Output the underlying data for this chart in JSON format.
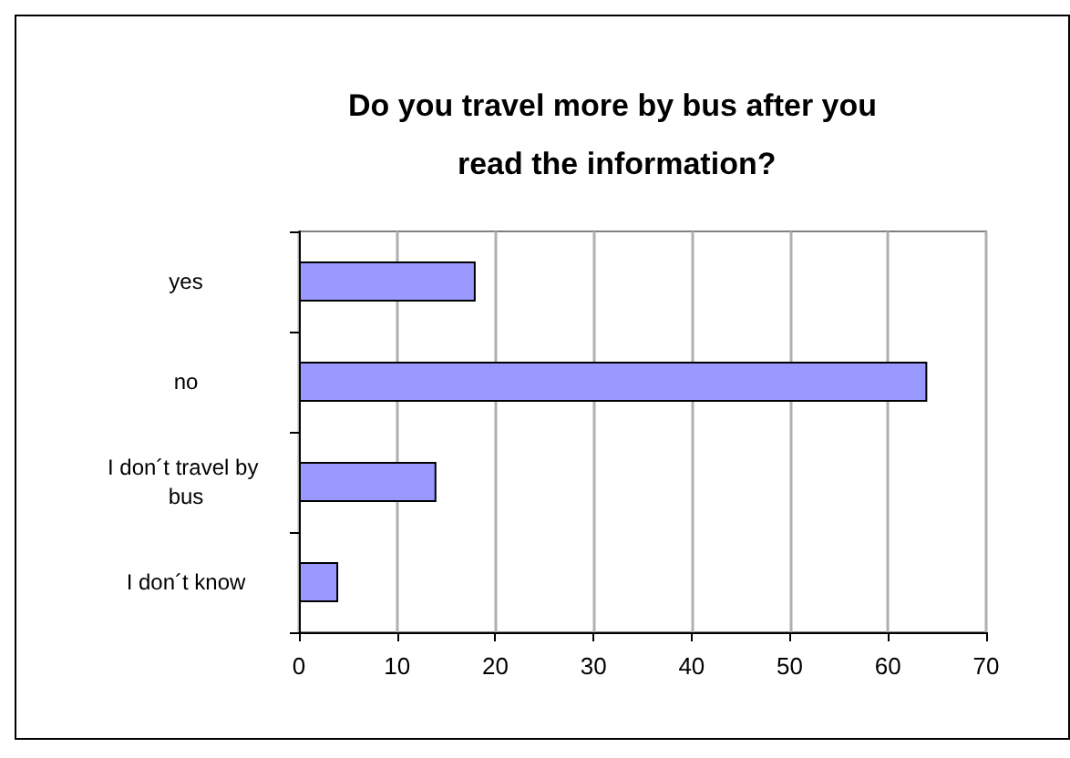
{
  "chart_data": {
    "type": "bar",
    "orientation": "horizontal",
    "title": "Do you travel more by bus after you read the information?",
    "categories": [
      "yes",
      "no",
      "I don´t travel by bus",
      "I don´t know"
    ],
    "values": [
      18,
      64,
      14,
      4
    ],
    "color": "#9999ff",
    "xlim": [
      0,
      70
    ],
    "xticks": [
      0,
      10,
      20,
      30,
      40,
      50,
      60,
      70
    ],
    "grid": "x"
  }
}
